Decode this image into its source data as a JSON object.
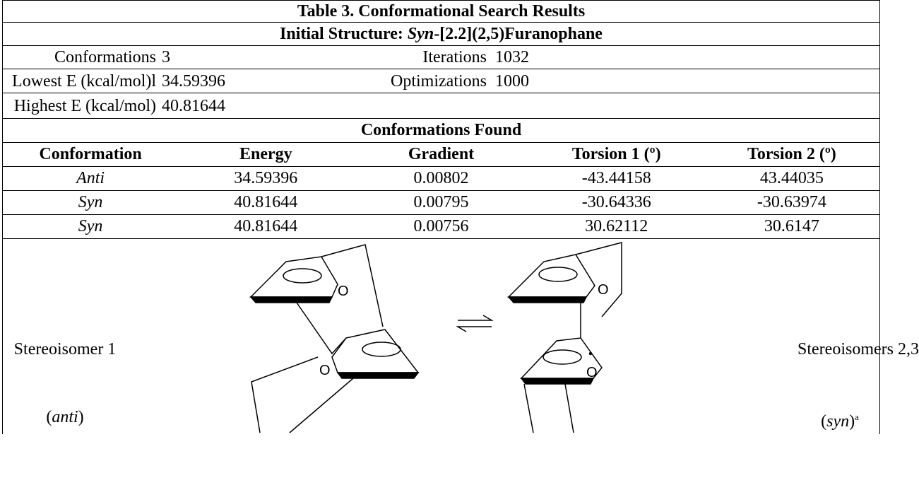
{
  "title": "Table 3. Conformational Search Results",
  "subtitle": {
    "prefix": "Initial Structure: ",
    "italic": "Syn",
    "suffix": "-[2.2](2,5)Furanophane"
  },
  "summary": [
    [
      "Conformations",
      "3",
      "Iterations",
      "1032"
    ],
    [
      "Lowest E (kcal/mol)l",
      "34.59396",
      "Optimizations",
      "1000"
    ],
    [
      "Highest E (kcal/mol)",
      "40.81644"
    ]
  ],
  "section": "Conformations Found",
  "table": {
    "header": [
      "Conformation",
      "Energy",
      "Gradient",
      "Torsion 1 (º)",
      "Torsion 2 (º)"
    ],
    "rows": [
      [
        "Anti",
        "34.59396",
        "0.00802",
        "-43.44158",
        "43.44035"
      ],
      [
        "Syn",
        "40.81644",
        "0.00795",
        "-30.64336",
        "-30.63974"
      ],
      [
        "Syn",
        "40.81644",
        "0.00756",
        "30.62112",
        "30.6147"
      ]
    ]
  },
  "figure": {
    "left": {
      "label": "Stereoisomer 1",
      "open": "(",
      "italic": "anti",
      "close": ")"
    },
    "right": {
      "label": "Stereoisomers 2,3",
      "open": "(",
      "italic": "syn",
      "close": ")",
      "footnote": "a"
    },
    "atom": "O"
  }
}
